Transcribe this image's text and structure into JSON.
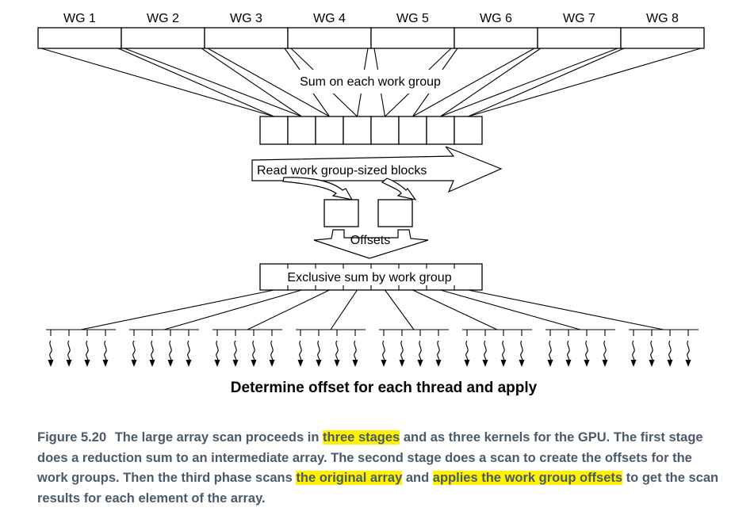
{
  "diagram": {
    "wg_labels": [
      "WG 1",
      "WG 2",
      "WG 3",
      "WG 4",
      "WG 5",
      "WG 6",
      "WG 7",
      "WG 8"
    ],
    "stage1_label": "Sum on each work group",
    "read_blocks_label": "Read work group-sized blocks",
    "offsets_label": "Offsets",
    "exclusive_sum_label": "Exclusive sum by work group",
    "apply_label": "Determine offset for each thread and apply"
  },
  "caption": {
    "figure_label": "Figure 5.20",
    "parts": [
      {
        "text": "The large array scan proceeds in ",
        "highlight": false
      },
      {
        "text": "three stages",
        "highlight": true
      },
      {
        "text": " and as three kernels for the GPU. The first stage does a reduction sum to an intermediate array. The second stage does a scan to create the offsets for the work groups. Then the third phase scans ",
        "highlight": false
      },
      {
        "text": "the original array",
        "highlight": true
      },
      {
        "text": " and ",
        "highlight": false
      },
      {
        "text": "applies the work group offsets",
        "highlight": true
      },
      {
        "text": " to get the scan results for each element of the array.",
        "highlight": false
      }
    ],
    "highlight_color": "#fff200",
    "text_color": "#4a5a6a"
  }
}
